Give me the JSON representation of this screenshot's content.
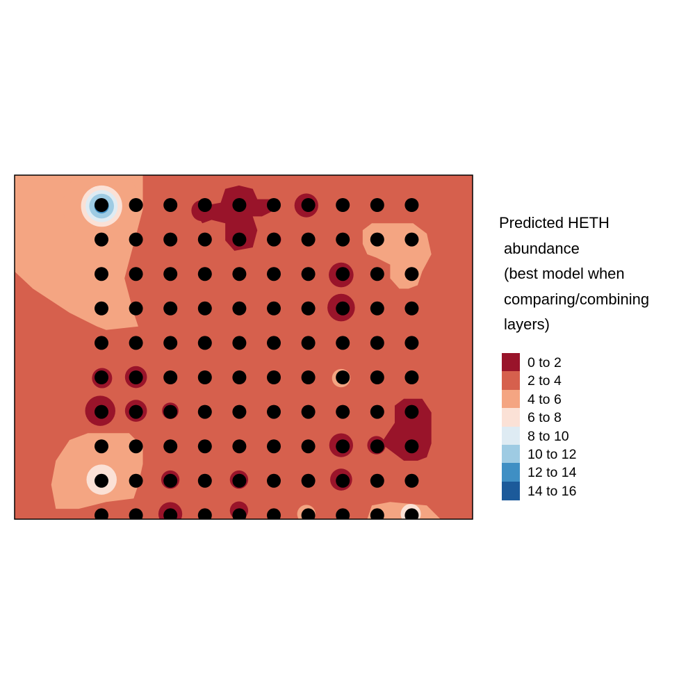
{
  "chart_data": {
    "type": "heatmap",
    "title_lines": [
      "Predicted HETH",
      "abundance",
      "(best model when",
      "comparing/combining",
      "layers)"
    ],
    "legend_placement": "right",
    "bins": [
      {
        "label": "0 to 2",
        "color": "#99142a"
      },
      {
        "label": "2 to 4",
        "color": "#d6604d"
      },
      {
        "label": "4 to 6",
        "color": "#f4a582"
      },
      {
        "label": "6 to 8",
        "color": "#fbe1d6"
      },
      {
        "label": "8 to 10",
        "color": "#deebf3"
      },
      {
        "label": "10 to 12",
        "color": "#9ecbe3"
      },
      {
        "label": "12 to 14",
        "color": "#3f8fc4"
      },
      {
        "label": "14 to 16",
        "color": "#1c5a9a"
      }
    ],
    "background_bin": 1,
    "sample_grid": {
      "columns": 10,
      "rows": 10,
      "point_color": "#000000"
    },
    "zones": [
      {
        "bin": 2,
        "shape": "polygon",
        "points": [
          [
            0,
            0
          ],
          [
            0.28,
            0
          ],
          [
            0.28,
            0.1
          ],
          [
            0.26,
            0.2
          ],
          [
            0.24,
            0.3
          ],
          [
            0.26,
            0.4
          ],
          [
            0.27,
            0.44
          ],
          [
            0.2,
            0.45
          ],
          [
            0.18,
            0.44
          ],
          [
            0.12,
            0.4
          ],
          [
            0.04,
            0.33
          ],
          [
            0,
            0.28
          ]
        ]
      },
      {
        "bin": 2,
        "shape": "circle",
        "cx": 0.19,
        "cy": 0.09,
        "r": 0.085
      },
      {
        "bin": 3,
        "shape": "circle",
        "cx": 0.19,
        "cy": 0.09,
        "r": 0.045
      },
      {
        "bin": 4,
        "shape": "circle",
        "cx": 0.19,
        "cy": 0.09,
        "r": 0.035
      },
      {
        "bin": 5,
        "shape": "circle",
        "cx": 0.19,
        "cy": 0.09,
        "r": 0.027
      },
      {
        "bin": 6,
        "shape": "circle",
        "cx": 0.19,
        "cy": 0.09,
        "r": 0.016
      },
      {
        "bin": 0,
        "shape": "polygon",
        "points": [
          [
            0.45,
            0.08
          ],
          [
            0.46,
            0.04
          ],
          [
            0.49,
            0.03
          ],
          [
            0.52,
            0.04
          ],
          [
            0.53,
            0.07
          ],
          [
            0.56,
            0.07
          ],
          [
            0.57,
            0.1
          ],
          [
            0.54,
            0.12
          ],
          [
            0.52,
            0.12
          ],
          [
            0.53,
            0.16
          ],
          [
            0.52,
            0.21
          ],
          [
            0.48,
            0.22
          ],
          [
            0.46,
            0.19
          ],
          [
            0.46,
            0.14
          ],
          [
            0.43,
            0.13
          ],
          [
            0.41,
            0.14
          ],
          [
            0.4,
            0.12
          ],
          [
            0.41,
            0.09
          ]
        ]
      },
      {
        "bin": 0,
        "shape": "circle",
        "cx": 0.409,
        "cy": 0.103,
        "r": 0.023
      },
      {
        "bin": 0,
        "shape": "circle",
        "cx": 0.567,
        "cy": 0.187,
        "r": 0.015
      },
      {
        "bin": 0,
        "shape": "circle",
        "cx": 0.637,
        "cy": 0.088,
        "r": 0.026
      },
      {
        "bin": 2,
        "shape": "polygon",
        "points": [
          [
            0.76,
            0.16
          ],
          [
            0.78,
            0.14
          ],
          [
            0.87,
            0.14
          ],
          [
            0.9,
            0.17
          ],
          [
            0.91,
            0.23
          ],
          [
            0.89,
            0.28
          ],
          [
            0.88,
            0.32
          ],
          [
            0.86,
            0.33
          ],
          [
            0.84,
            0.33
          ],
          [
            0.82,
            0.3
          ],
          [
            0.82,
            0.26
          ],
          [
            0.79,
            0.24
          ],
          [
            0.77,
            0.23
          ],
          [
            0.76,
            0.2
          ]
        ]
      },
      {
        "bin": 0,
        "shape": "circle",
        "cx": 0.713,
        "cy": 0.29,
        "r": 0.027
      },
      {
        "bin": 0,
        "shape": "circle",
        "cx": 0.713,
        "cy": 0.385,
        "r": 0.03
      },
      {
        "bin": 0,
        "shape": "circle",
        "cx": 0.191,
        "cy": 0.59,
        "r": 0.022
      },
      {
        "bin": 0,
        "shape": "circle",
        "cx": 0.265,
        "cy": 0.587,
        "r": 0.024
      },
      {
        "bin": 0,
        "shape": "circle",
        "cx": 0.187,
        "cy": 0.685,
        "r": 0.033
      },
      {
        "bin": 0,
        "shape": "circle",
        "cx": 0.265,
        "cy": 0.685,
        "r": 0.024
      },
      {
        "bin": 0,
        "shape": "circle",
        "cx": 0.34,
        "cy": 0.685,
        "r": 0.018
      },
      {
        "bin": 2,
        "shape": "circle",
        "cx": 0.713,
        "cy": 0.59,
        "r": 0.02
      },
      {
        "bin": 0,
        "shape": "polygon",
        "points": [
          [
            0.83,
            0.67
          ],
          [
            0.85,
            0.65
          ],
          [
            0.89,
            0.65
          ],
          [
            0.91,
            0.69
          ],
          [
            0.91,
            0.78
          ],
          [
            0.9,
            0.82
          ],
          [
            0.88,
            0.83
          ],
          [
            0.85,
            0.83
          ],
          [
            0.82,
            0.8
          ],
          [
            0.8,
            0.78
          ],
          [
            0.82,
            0.74
          ],
          [
            0.83,
            0.72
          ]
        ]
      },
      {
        "bin": 0,
        "shape": "circle",
        "cx": 0.713,
        "cy": 0.785,
        "r": 0.026
      },
      {
        "bin": 0,
        "shape": "circle",
        "cx": 0.79,
        "cy": 0.785,
        "r": 0.02
      },
      {
        "bin": 2,
        "shape": "polygon",
        "points": [
          [
            0.09,
            0.83
          ],
          [
            0.12,
            0.77
          ],
          [
            0.16,
            0.75
          ],
          [
            0.25,
            0.75
          ],
          [
            0.28,
            0.79
          ],
          [
            0.28,
            0.84
          ],
          [
            0.27,
            0.9
          ],
          [
            0.26,
            0.94
          ],
          [
            0.2,
            0.95
          ],
          [
            0.14,
            0.97
          ],
          [
            0.09,
            0.97
          ],
          [
            0.08,
            0.9
          ]
        ]
      },
      {
        "bin": 3,
        "shape": "circle",
        "cx": 0.19,
        "cy": 0.885,
        "r": 0.033
      },
      {
        "bin": 0,
        "shape": "circle",
        "cx": 0.34,
        "cy": 0.885,
        "r": 0.02
      },
      {
        "bin": 0,
        "shape": "circle",
        "cx": 0.49,
        "cy": 0.885,
        "r": 0.02
      },
      {
        "bin": 0,
        "shape": "circle",
        "cx": 0.713,
        "cy": 0.885,
        "r": 0.024
      },
      {
        "bin": 0,
        "shape": "circle",
        "cx": 0.34,
        "cy": 0.985,
        "r": 0.026
      },
      {
        "bin": 0,
        "shape": "circle",
        "cx": 0.49,
        "cy": 0.975,
        "r": 0.02
      },
      {
        "bin": 2,
        "shape": "circle",
        "cx": 0.637,
        "cy": 0.985,
        "r": 0.02
      },
      {
        "bin": 2,
        "shape": "polygon",
        "points": [
          [
            0.77,
            1.0
          ],
          [
            0.78,
            0.96
          ],
          [
            0.82,
            0.95
          ],
          [
            0.9,
            0.96
          ],
          [
            0.93,
            1.0
          ]
        ]
      },
      {
        "bin": 3,
        "shape": "circle",
        "cx": 0.865,
        "cy": 0.985,
        "r": 0.022
      }
    ]
  }
}
